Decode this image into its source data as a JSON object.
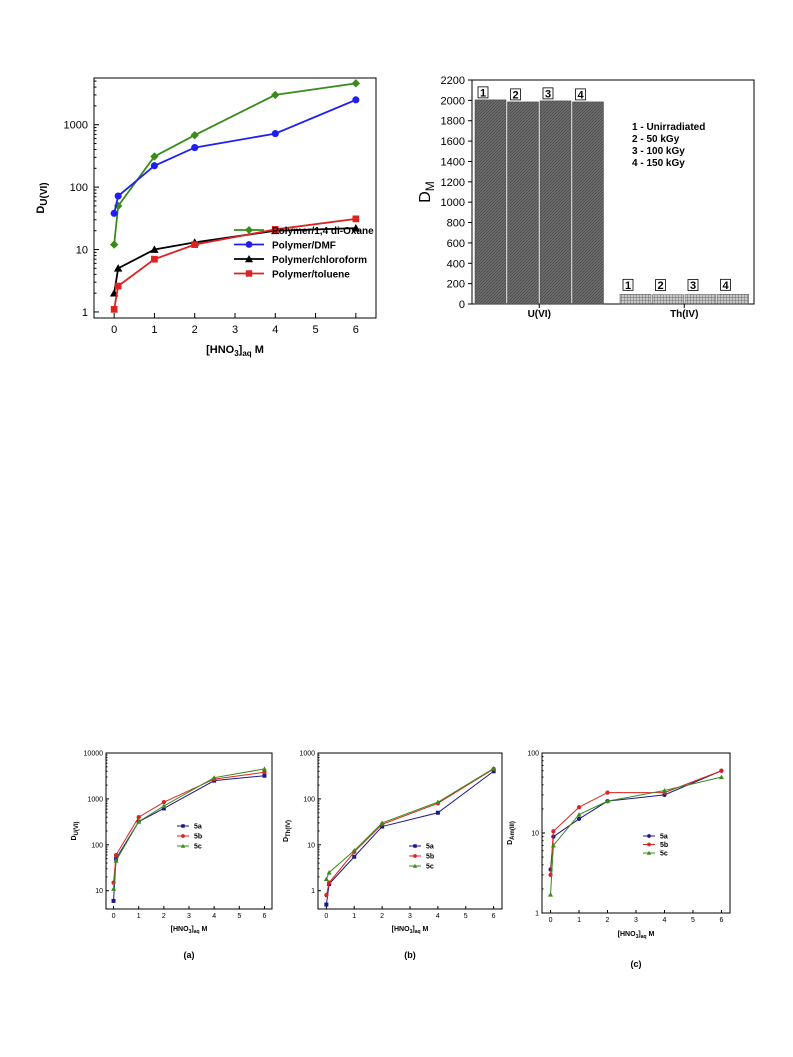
{
  "chart_data": [
    {
      "id": "top-left",
      "type": "line",
      "yscale": "log",
      "xlim": [
        -0.5,
        6.5
      ],
      "ylim": [
        0.8,
        5600
      ],
      "xticks": [
        0,
        1,
        2,
        3,
        4,
        5,
        6
      ],
      "yticks": [
        1,
        10,
        100,
        1000
      ],
      "ytick_labels": [
        "1",
        "10",
        "100",
        "1000"
      ],
      "xlabel": {
        "main": "[HNO",
        "sub1": "3",
        "mid": "]",
        "sub2": "aq",
        "end": " M"
      },
      "ylabel": {
        "main": "D",
        "sub": "U(VI)"
      },
      "series": [
        {
          "name": "Polymer/1,4 di-Oxane",
          "color": "#3a8a1c",
          "marker": "diamond",
          "x": [
            0,
            0.1,
            1,
            2,
            4,
            6
          ],
          "y": [
            12,
            50,
            310,
            680,
            3000,
            4600
          ]
        },
        {
          "name": "Polymer/DMF",
          "color": "#2020ee",
          "marker": "circle",
          "x": [
            0,
            0.1,
            1,
            2,
            4,
            6
          ],
          "y": [
            38,
            72,
            220,
            430,
            720,
            2500
          ]
        },
        {
          "name": "Polymer/chloroform",
          "color": "#000000",
          "marker": "triangle",
          "x": [
            0,
            0.1,
            1,
            2,
            4,
            6
          ],
          "y": [
            2,
            5,
            10,
            13,
            20,
            22
          ]
        },
        {
          "name": "Polymer/toluene",
          "color": "#dd2222",
          "marker": "square",
          "x": [
            0,
            0.1,
            1,
            2,
            4,
            6
          ],
          "y": [
            1.1,
            2.6,
            7,
            12,
            21,
            31
          ]
        }
      ]
    },
    {
      "id": "top-right",
      "type": "bar",
      "ylim": [
        0,
        2200
      ],
      "yticks": [
        0,
        200,
        400,
        600,
        800,
        1000,
        1200,
        1400,
        1600,
        1800,
        2000,
        2200
      ],
      "categories": [
        "U(VI)",
        "Th(IV)"
      ],
      "bar_labels": [
        "1",
        "2",
        "3",
        "4"
      ],
      "series": [
        {
          "name": "1",
          "values": [
            2005,
            95
          ]
        },
        {
          "name": "2",
          "values": [
            1985,
            92
          ]
        },
        {
          "name": "3",
          "values": [
            1995,
            93
          ]
        },
        {
          "name": "4",
          "values": [
            1985,
            95
          ]
        }
      ],
      "ylabel": {
        "main": "D",
        "sub": "M"
      },
      "annotations": [
        "1 - Unirradiated",
        "2 - 50 kGy",
        "3 - 100 kGy",
        "4 - 150 kGy"
      ]
    },
    {
      "id": "bottom-a",
      "type": "line",
      "yscale": "log",
      "xlim": [
        -0.3,
        6.3
      ],
      "ylim": [
        4,
        10000
      ],
      "xticks": [
        0,
        1,
        2,
        3,
        4,
        5,
        6
      ],
      "yticks": [
        10,
        100,
        1000,
        10000
      ],
      "ytick_labels": [
        "10",
        "100",
        "1000",
        "10000"
      ],
      "xlabel": {
        "main": "[HNO",
        "sub1": "3",
        "mid": "]",
        "sub2": "aq",
        "end": " M"
      },
      "ylabel": {
        "main": "D",
        "sub": "U(VI)"
      },
      "caption": "(a)",
      "series": [
        {
          "name": "5a",
          "color": "#1a1a88",
          "marker": "square",
          "x": [
            0,
            0.1,
            1,
            2,
            4,
            6
          ],
          "y": [
            6,
            50,
            320,
            620,
            2500,
            3200
          ]
        },
        {
          "name": "5b",
          "color": "#dd2222",
          "marker": "circle",
          "x": [
            0,
            0.1,
            1,
            2,
            4,
            6
          ],
          "y": [
            15,
            60,
            400,
            850,
            2700,
            3800
          ]
        },
        {
          "name": "5c",
          "color": "#3a8a1c",
          "marker": "triangle",
          "x": [
            0,
            0.1,
            1,
            2,
            4,
            6
          ],
          "y": [
            11,
            45,
            320,
            700,
            2900,
            4500
          ]
        }
      ]
    },
    {
      "id": "bottom-b",
      "type": "line",
      "yscale": "log",
      "xlim": [
        -0.3,
        6.3
      ],
      "ylim": [
        0.4,
        1000
      ],
      "xticks": [
        0,
        1,
        2,
        3,
        4,
        5,
        6
      ],
      "yticks": [
        1,
        10,
        100,
        1000
      ],
      "ytick_labels": [
        "1",
        "10",
        "100",
        "1000"
      ],
      "xlabel": {
        "main": "[HNO",
        "sub1": "3",
        "mid": "]",
        "sub2": "aq",
        "end": " M"
      },
      "ylabel": {
        "main": "D",
        "sub": "Th(IV)"
      },
      "caption": "(b)",
      "series": [
        {
          "name": "5a",
          "color": "#1a1a88",
          "marker": "square",
          "x": [
            0,
            0.1,
            1,
            2,
            4,
            6
          ],
          "y": [
            0.5,
            1.4,
            5.5,
            25,
            50,
            400
          ]
        },
        {
          "name": "5b",
          "color": "#dd2222",
          "marker": "circle",
          "x": [
            0,
            0.1,
            1,
            2,
            4,
            6
          ],
          "y": [
            0.8,
            1.5,
            7,
            28,
            80,
            450
          ]
        },
        {
          "name": "5c",
          "color": "#3a8a1c",
          "marker": "triangle",
          "x": [
            0,
            0.1,
            1,
            2,
            4,
            6
          ],
          "y": [
            1.8,
            2.5,
            7.5,
            30,
            85,
            460
          ]
        }
      ]
    },
    {
      "id": "bottom-c",
      "type": "line",
      "yscale": "log",
      "xlim": [
        -0.3,
        6.3
      ],
      "ylim": [
        1,
        100
      ],
      "xticks": [
        0,
        1,
        2,
        3,
        4,
        5,
        6
      ],
      "yticks": [
        1,
        10,
        100
      ],
      "ytick_labels": [
        "1",
        "10",
        "100"
      ],
      "xlabel": {
        "main": "[HNO",
        "sub1": "3",
        "mid": "]",
        "sub2": "aq",
        "end": " M"
      },
      "ylabel": {
        "main": "D",
        "sub": "Am(III)"
      },
      "caption": "(c)",
      "series": [
        {
          "name": "5a",
          "color": "#1a1a88",
          "marker": "circle",
          "x": [
            0,
            0.1,
            1,
            2,
            4,
            6
          ],
          "y": [
            3.5,
            9,
            15,
            25,
            30,
            60
          ]
        },
        {
          "name": "5b",
          "color": "#dd2222",
          "marker": "circle",
          "x": [
            0,
            0.1,
            1,
            2,
            4,
            6
          ],
          "y": [
            3,
            10.5,
            21,
            32,
            32,
            60
          ]
        },
        {
          "name": "5c",
          "color": "#3a8a1c",
          "marker": "triangle",
          "x": [
            0,
            0.1,
            1,
            2,
            4,
            6
          ],
          "y": [
            1.7,
            7,
            17,
            25,
            34,
            50
          ]
        }
      ]
    }
  ]
}
